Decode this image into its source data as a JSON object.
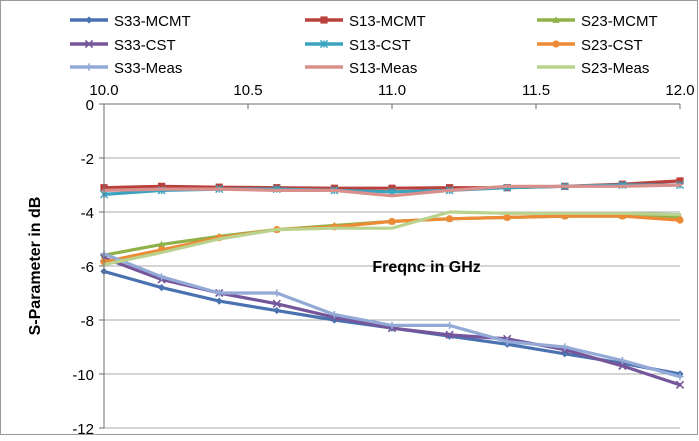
{
  "chart_data": {
    "type": "line",
    "title": "",
    "xlabel": "Freqnc in GHz",
    "ylabel": "S-Parameter in dB",
    "xlim": [
      10.0,
      12.0
    ],
    "ylim": [
      -12,
      0
    ],
    "x_ticks": [
      "10.0",
      "10.5",
      "11.0",
      "11.5",
      "12.0"
    ],
    "y_ticks": [
      "0",
      "-2",
      "-4",
      "-6",
      "-8",
      "-10",
      "-12"
    ],
    "x_axis_position": "top (at y = 0)",
    "grid": "horizontal",
    "legend_position": "top",
    "series": [
      {
        "name": "S33-MCMT",
        "color": "#4a72b0",
        "marker": "diamond",
        "x": [
          10.0,
          10.2,
          10.4,
          10.6,
          10.8,
          11.0,
          11.2,
          11.4,
          11.6,
          11.8,
          12.0
        ],
        "y": [
          -6.2,
          -6.8,
          -7.3,
          -7.65,
          -8.0,
          -8.3,
          -8.6,
          -8.9,
          -9.25,
          -9.6,
          -10.0
        ]
      },
      {
        "name": "S13-MCMT",
        "color": "#b9403c",
        "marker": "square",
        "x": [
          10.0,
          10.2,
          10.4,
          10.6,
          10.8,
          11.0,
          11.2,
          11.4,
          11.6,
          11.8,
          12.0
        ],
        "y": [
          -3.1,
          -3.05,
          -3.08,
          -3.1,
          -3.12,
          -3.12,
          -3.1,
          -3.1,
          -3.05,
          -2.97,
          -2.85
        ]
      },
      {
        "name": "S23-MCMT",
        "color": "#8fb148",
        "marker": "triangle",
        "x": [
          10.0,
          10.2,
          10.4,
          10.6,
          10.8,
          11.0,
          11.2,
          11.4,
          11.6,
          11.8,
          12.0
        ],
        "y": [
          -5.6,
          -5.2,
          -4.9,
          -4.65,
          -4.5,
          -4.35,
          -4.25,
          -4.2,
          -4.15,
          -4.15,
          -4.2
        ]
      },
      {
        "name": "S33-CST",
        "color": "#76569b",
        "marker": "x",
        "x": [
          10.0,
          10.2,
          10.4,
          10.6,
          10.8,
          11.0,
          11.2,
          11.4,
          11.6,
          11.8,
          12.0
        ],
        "y": [
          -5.7,
          -6.5,
          -7.0,
          -7.4,
          -7.9,
          -8.3,
          -8.55,
          -8.7,
          -9.1,
          -9.7,
          -10.4
        ]
      },
      {
        "name": "S13-CST",
        "color": "#3aa3c0",
        "marker": "star",
        "x": [
          10.0,
          10.2,
          10.4,
          10.6,
          10.8,
          11.0,
          11.2,
          11.4,
          11.6,
          11.8,
          12.0
        ],
        "y": [
          -3.35,
          -3.2,
          -3.15,
          -3.15,
          -3.2,
          -3.25,
          -3.2,
          -3.1,
          -3.05,
          -3.0,
          -3.0
        ]
      },
      {
        "name": "S23-CST",
        "color": "#ed8a35",
        "marker": "circle",
        "x": [
          10.0,
          10.2,
          10.4,
          10.6,
          10.8,
          11.0,
          11.2,
          11.4,
          11.6,
          11.8,
          12.0
        ],
        "y": [
          -5.85,
          -5.4,
          -4.95,
          -4.65,
          -4.55,
          -4.35,
          -4.25,
          -4.2,
          -4.15,
          -4.15,
          -4.3
        ]
      },
      {
        "name": "S33-Meas",
        "color": "#93a9d6",
        "marker": "plus",
        "x": [
          10.0,
          10.2,
          10.4,
          10.6,
          10.8,
          11.0,
          11.2,
          11.4,
          11.6,
          11.8,
          12.0
        ],
        "y": [
          -5.55,
          -6.4,
          -7.0,
          -7.0,
          -7.8,
          -8.2,
          -8.2,
          -8.8,
          -9.0,
          -9.5,
          -10.1
        ]
      },
      {
        "name": "S13-Meas",
        "color": "#d98f8c",
        "marker": "none",
        "x": [
          10.0,
          10.2,
          10.4,
          10.6,
          10.8,
          11.0,
          11.2,
          11.4,
          11.6,
          11.8,
          12.0
        ],
        "y": [
          -3.2,
          -3.15,
          -3.15,
          -3.2,
          -3.2,
          -3.4,
          -3.2,
          -3.05,
          -3.05,
          -3.05,
          -3.0
        ]
      },
      {
        "name": "S23-Meas",
        "color": "#b9d38e",
        "marker": "none",
        "x": [
          10.0,
          10.2,
          10.4,
          10.6,
          10.8,
          11.0,
          11.2,
          11.4,
          11.6,
          11.8,
          12.0
        ],
        "y": [
          -5.95,
          -5.5,
          -5.0,
          -4.65,
          -4.6,
          -4.6,
          -4.0,
          -4.05,
          -4.05,
          -4.05,
          -4.1
        ]
      }
    ]
  }
}
